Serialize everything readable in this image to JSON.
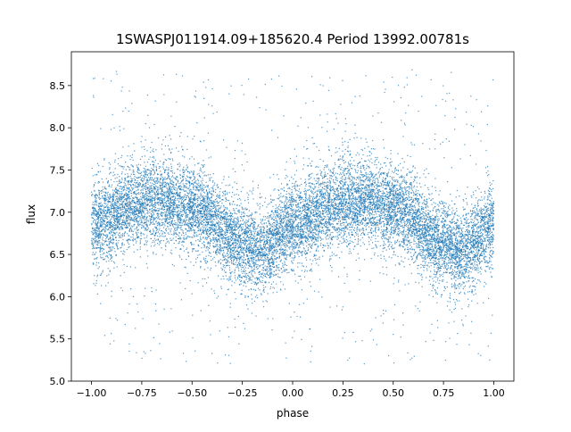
{
  "chart_data": {
    "type": "scatter",
    "title": "1SWASPJ011914.09+185620.4 Period 13992.00781s",
    "xlabel": "phase",
    "ylabel": "flux",
    "xlim": [
      -1.1,
      1.1
    ],
    "ylim": [
      5.0,
      8.9
    ],
    "x_ticks": [
      -1.0,
      -0.75,
      -0.5,
      -0.25,
      0.0,
      0.25,
      0.5,
      0.75,
      1.0
    ],
    "x_tick_labels": [
      "−1.00",
      "−0.75",
      "−0.50",
      "−0.25",
      "0.00",
      "0.25",
      "0.50",
      "0.75",
      "1.00"
    ],
    "y_ticks": [
      5.0,
      5.5,
      6.0,
      6.5,
      7.0,
      7.5,
      8.0,
      8.5
    ],
    "y_tick_labels": [
      "5.0",
      "5.5",
      "6.0",
      "6.5",
      "7.0",
      "7.5",
      "8.0",
      "8.5"
    ],
    "grid": false,
    "series": [
      {
        "color": "#1f77b4",
        "x_range": [
          -1.0,
          1.0
        ],
        "trend_phase": [
          -1.0,
          -0.75,
          -0.65,
          -0.5,
          -0.25,
          -0.15,
          0.0,
          0.25,
          0.35,
          0.5,
          0.75,
          0.85,
          1.0
        ],
        "trend_flux": [
          6.85,
          7.12,
          7.15,
          7.05,
          6.62,
          6.55,
          6.85,
          7.12,
          7.15,
          7.05,
          6.62,
          6.55,
          6.85
        ],
        "spread_sigma": 0.25,
        "outlier_range": [
          5.2,
          8.7
        ]
      }
    ]
  }
}
